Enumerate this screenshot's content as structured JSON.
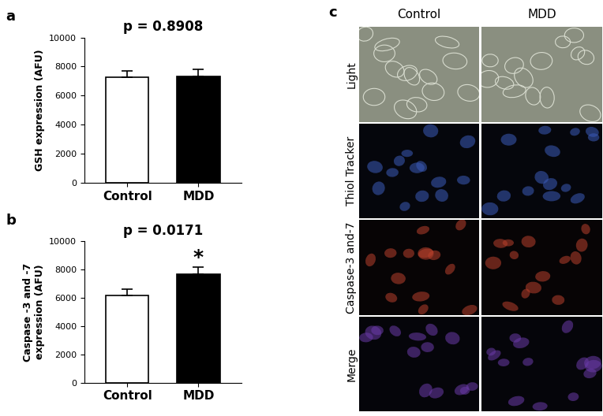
{
  "chart_data": [
    {
      "type": "bar",
      "panel_label": "a",
      "title": "p = 0.8908",
      "y_label": "GSH expression (AFU)",
      "categories": [
        "Control",
        "MDD"
      ],
      "values": [
        7250,
        7300
      ],
      "errors": [
        450,
        500
      ],
      "colors": [
        "#ffffff",
        "#000000"
      ],
      "ylim": [
        0,
        10000
      ],
      "yticks": [
        0,
        2000,
        4000,
        6000,
        8000,
        10000
      ],
      "grid": false
    },
    {
      "type": "bar",
      "panel_label": "b",
      "title": "p = 0.0171",
      "y_label": "Caspase -3 and -7\nexpression (AFU)",
      "categories": [
        "Control",
        "MDD"
      ],
      "values": [
        6150,
        7700
      ],
      "errors": [
        450,
        500
      ],
      "colors": [
        "#ffffff",
        "#000000"
      ],
      "annotations": [
        {
          "text": "*",
          "category": "MDD"
        }
      ],
      "ylim": [
        0,
        10000
      ],
      "yticks": [
        0,
        2000,
        4000,
        6000,
        8000,
        10000
      ],
      "grid": false
    }
  ],
  "image_panel": {
    "panel_label": "c",
    "columns": [
      "Control",
      "MDD"
    ],
    "rows": [
      "Light",
      "Thiol Tracker",
      "Caspase-3 and-7",
      "Merge"
    ]
  }
}
